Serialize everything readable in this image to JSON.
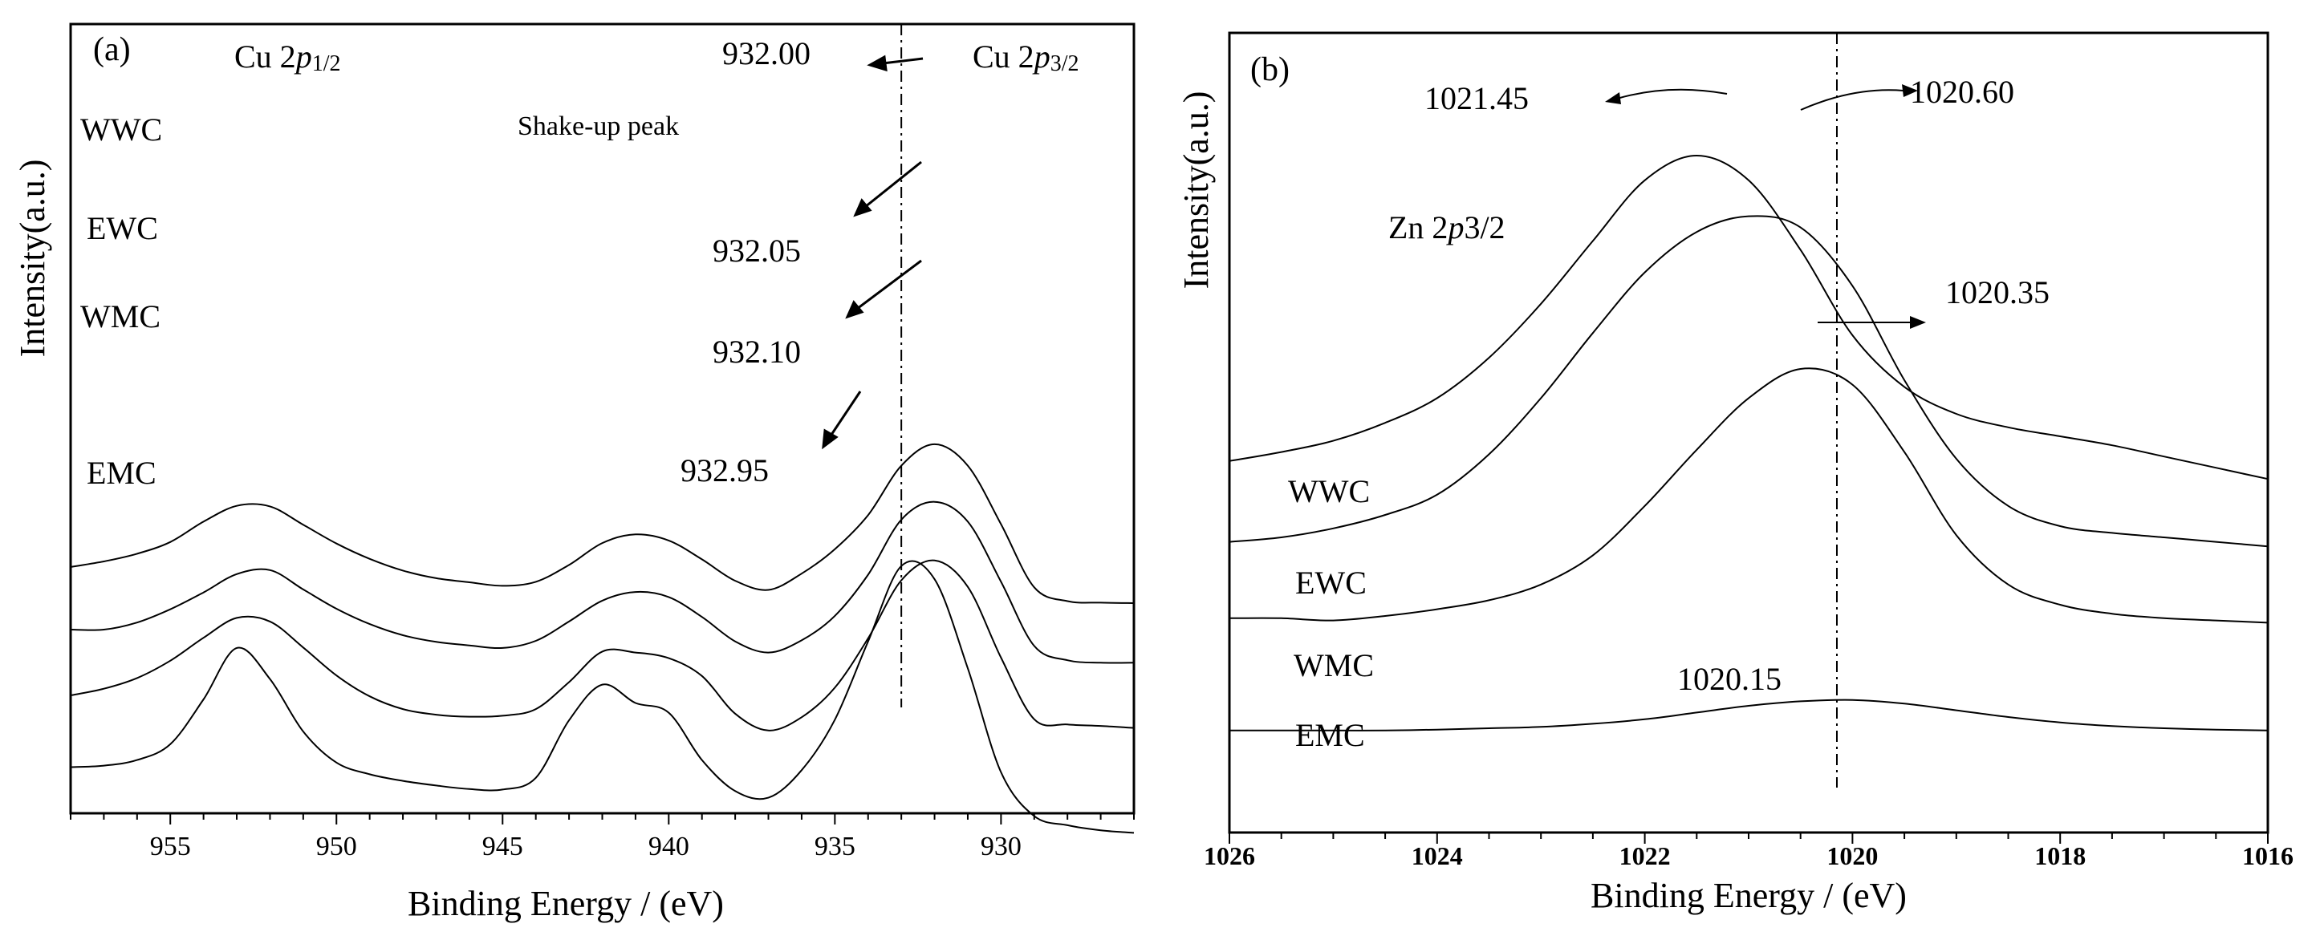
{
  "chart_data": [
    {
      "panel": "(a)",
      "type": "line",
      "title": "",
      "xlabel": "Binding Energy / (eV)",
      "ylabel": "Intensity(a.u.)",
      "xlim": [
        958,
        926
      ],
      "x_reversed": true,
      "y_units": "arbitrary",
      "xticks": [
        955,
        950,
        945,
        940,
        935,
        930
      ],
      "annotations": {
        "cu_2p12": {
          "prefix": "Cu 2",
          "sub": "p",
          "suffix": "1/2"
        },
        "cu_2p32": {
          "prefix": "Cu 2",
          "sub": "p",
          "suffix": "3/2"
        },
        "shakeup": "Shake-up peak",
        "reference_line_x": 933.0
      },
      "peak_labels": [
        {
          "label": "932.00",
          "series": "WWC"
        },
        {
          "label": "932.05",
          "series": "EWC"
        },
        {
          "label": "932.10",
          "series": "WMC"
        },
        {
          "label": "932.95",
          "series": "EMC"
        }
      ],
      "series": [
        {
          "name": "WWC",
          "x": [
            958,
            957,
            956,
            955,
            954,
            953,
            952,
            951,
            950,
            949,
            948,
            947,
            946,
            945,
            944,
            943,
            942,
            941,
            940,
            939,
            938,
            937,
            936,
            935,
            934,
            933,
            932,
            931,
            930,
            929,
            928,
            927,
            926
          ],
          "y": [
            5.93,
            6.04,
            6.19,
            6.42,
            6.82,
            7.13,
            7.12,
            6.76,
            6.39,
            6.09,
            5.86,
            5.71,
            5.63,
            5.56,
            5.64,
            5.97,
            6.4,
            6.57,
            6.45,
            6.08,
            5.66,
            5.48,
            5.8,
            6.28,
            6.95,
            7.92,
            8.34,
            7.92,
            6.77,
            5.53,
            5.26,
            5.23,
            5.22
          ]
        },
        {
          "name": "EWC",
          "x": [
            958,
            957,
            956,
            955,
            954,
            953,
            952,
            951,
            950,
            949,
            948,
            947,
            946,
            945,
            944,
            943,
            942,
            941,
            940,
            939,
            938,
            937,
            936,
            935,
            934,
            933,
            932,
            931,
            930,
            929,
            928,
            927,
            926
          ],
          "y": [
            4.7,
            4.7,
            4.84,
            5.1,
            5.43,
            5.79,
            5.87,
            5.49,
            5.11,
            4.81,
            4.59,
            4.46,
            4.39,
            4.34,
            4.48,
            4.86,
            5.27,
            5.44,
            5.34,
            4.95,
            4.47,
            4.25,
            4.49,
            4.97,
            5.78,
            6.86,
            7.21,
            6.82,
            5.64,
            4.38,
            4.1,
            4.05,
            4.05
          ]
        },
        {
          "name": "WMC",
          "x": [
            958,
            957,
            956,
            955,
            954,
            953,
            952,
            951,
            950,
            949,
            948,
            947,
            946,
            945,
            944,
            943,
            942,
            941,
            940,
            939,
            938,
            937,
            936,
            935,
            934,
            933,
            932,
            931,
            930,
            929,
            928,
            927,
            926
          ],
          "y": [
            3.41,
            3.54,
            3.75,
            4.09,
            4.54,
            4.93,
            4.86,
            4.35,
            3.8,
            3.39,
            3.14,
            3.03,
            2.99,
            3.01,
            3.14,
            3.67,
            4.27,
            4.25,
            4.14,
            3.79,
            3.05,
            2.72,
            2.98,
            3.56,
            4.53,
            5.67,
            6.06,
            5.54,
            4.15,
            2.94,
            2.84,
            2.81,
            2.77
          ]
        },
        {
          "name": "EMC",
          "x": [
            958,
            957,
            956,
            955,
            954,
            953,
            952,
            951,
            950,
            949,
            948,
            947,
            946,
            945,
            944,
            943,
            942,
            941,
            940,
            939,
            938,
            937,
            936,
            935,
            934,
            933,
            932,
            931,
            930,
            929,
            928,
            927,
            926
          ],
          "y": [
            1.4,
            1.43,
            1.54,
            1.85,
            2.73,
            3.74,
            3.13,
            2.1,
            1.49,
            1.26,
            1.13,
            1.04,
            0.97,
            0.96,
            1.19,
            2.32,
            3.02,
            2.66,
            2.47,
            1.54,
            0.93,
            0.8,
            1.34,
            2.33,
            3.87,
            5.35,
            5.09,
            3.34,
            1.3,
            0.44,
            0.26,
            0.16,
            0.11
          ]
        }
      ]
    },
    {
      "panel": "(b)",
      "type": "line",
      "title": "",
      "xlabel": "Binding Energy / (eV)",
      "ylabel": "Intensity(a.u.)",
      "xlim": [
        1026,
        1016
      ],
      "x_reversed": true,
      "y_units": "arbitrary",
      "xticks": [
        1026,
        1024,
        1022,
        1020,
        1018,
        1016
      ],
      "annotations": {
        "zn_2p32": {
          "prefix": "Zn 2",
          "sub": "p",
          "suffix": "3/2"
        },
        "reference_line_x": 1020.15
      },
      "peak_labels": [
        {
          "label": "1021.45",
          "series": "WWC"
        },
        {
          "label": "1020.60",
          "series": "EWC"
        },
        {
          "label": "1020.35",
          "series": "WMC"
        },
        {
          "label": "1020.15",
          "series": "EMC"
        }
      ],
      "series": [
        {
          "name": "WWC",
          "x": [
            1026,
            1025.5,
            1025,
            1024.5,
            1024,
            1023.5,
            1023,
            1022.5,
            1022,
            1021.5,
            1021,
            1020.5,
            1020,
            1019.5,
            1019,
            1018.5,
            1018,
            1017.5,
            1017,
            1016.5,
            1016
          ],
          "y": [
            2.2,
            2.4,
            2.65,
            3.05,
            3.6,
            4.5,
            5.7,
            7.1,
            8.45,
            9.0,
            8.45,
            6.9,
            5.0,
            3.85,
            3.25,
            2.95,
            2.75,
            2.55,
            2.3,
            2.05,
            1.8
          ]
        },
        {
          "name": "EWC",
          "x": [
            1026,
            1025.5,
            1025,
            1024.5,
            1024,
            1023.5,
            1023,
            1022.5,
            1022,
            1021.5,
            1021,
            1020.5,
            1020,
            1019.5,
            1019,
            1018.5,
            1018,
            1017.5,
            1017,
            1016.5,
            1016
          ],
          "y": [
            1.2,
            1.3,
            1.5,
            1.8,
            2.25,
            3.15,
            4.4,
            5.85,
            7.2,
            8.1,
            8.45,
            8.2,
            6.9,
            4.8,
            3.05,
            2.0,
            1.55,
            1.4,
            1.3,
            1.2,
            1.1
          ]
        },
        {
          "name": "WMC",
          "x": [
            1026,
            1025.5,
            1025,
            1024.5,
            1024,
            1023.5,
            1023,
            1022.5,
            1022,
            1021.5,
            1021,
            1020.5,
            1020,
            1019.5,
            1019,
            1018.5,
            1018,
            1017.5,
            1017,
            1016.5,
            1016
          ],
          "y": [
            0.6,
            0.6,
            0.55,
            0.65,
            0.8,
            1.0,
            1.35,
            2.0,
            3.1,
            4.35,
            5.5,
            6.15,
            5.8,
            4.3,
            2.45,
            1.35,
            0.9,
            0.7,
            0.6,
            0.55,
            0.5
          ]
        },
        {
          "name": "EMC",
          "x": [
            1026,
            1025.5,
            1025,
            1024.5,
            1024,
            1023.5,
            1023,
            1022.5,
            1022,
            1021.5,
            1021,
            1020.5,
            1020,
            1019.5,
            1019,
            1018.5,
            1018,
            1017.5,
            1017,
            1016.5,
            1016
          ],
          "y": [
            -0.3,
            -0.3,
            -0.3,
            -0.3,
            -0.28,
            -0.25,
            -0.22,
            -0.15,
            -0.05,
            0.1,
            0.25,
            0.35,
            0.38,
            0.3,
            0.15,
            0.0,
            -0.12,
            -0.2,
            -0.25,
            -0.28,
            -0.3
          ]
        }
      ]
    }
  ]
}
